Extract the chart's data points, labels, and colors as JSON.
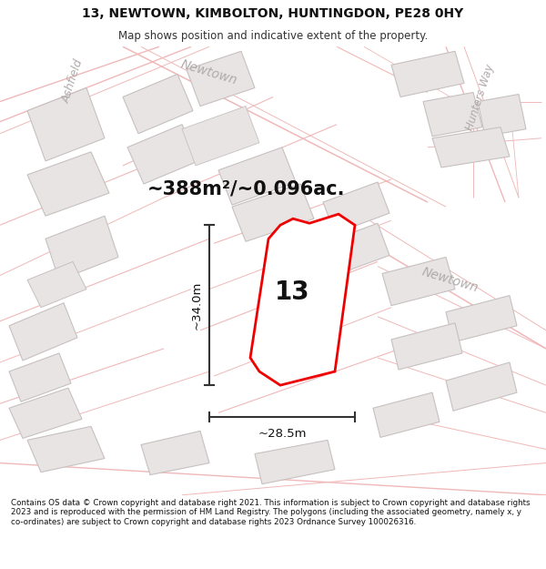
{
  "title": "13, NEWTOWN, KIMBOLTON, HUNTINGDON, PE28 0HY",
  "subtitle": "Map shows position and indicative extent of the property.",
  "area_text": "~388m²/~0.096ac.",
  "dim_width": "~28.5m",
  "dim_height": "~34.0m",
  "property_number": "13",
  "footer": "Contains OS data © Crown copyright and database right 2021. This information is subject to Crown copyright and database rights 2023 and is reproduced with the permission of HM Land Registry. The polygons (including the associated geometry, namely x, y co-ordinates) are subject to Crown copyright and database rights 2023 Ordnance Survey 100026316.",
  "map_bg": "#f7f4f4",
  "road_outline": "#f0b8b8",
  "road_fill": "#f7f4f4",
  "building_fill": "#e8e4e4",
  "building_edge": "#c8c0c0",
  "property_line_color": "#ee0000",
  "dim_line_color": "#333333",
  "road_label_color": "#b0aaaa",
  "title_fontsize": 10,
  "subtitle_fontsize": 8.5,
  "area_fontsize": 15,
  "dim_fontsize": 9.5,
  "number_fontsize": 20,
  "road_label_fontsize": 10
}
